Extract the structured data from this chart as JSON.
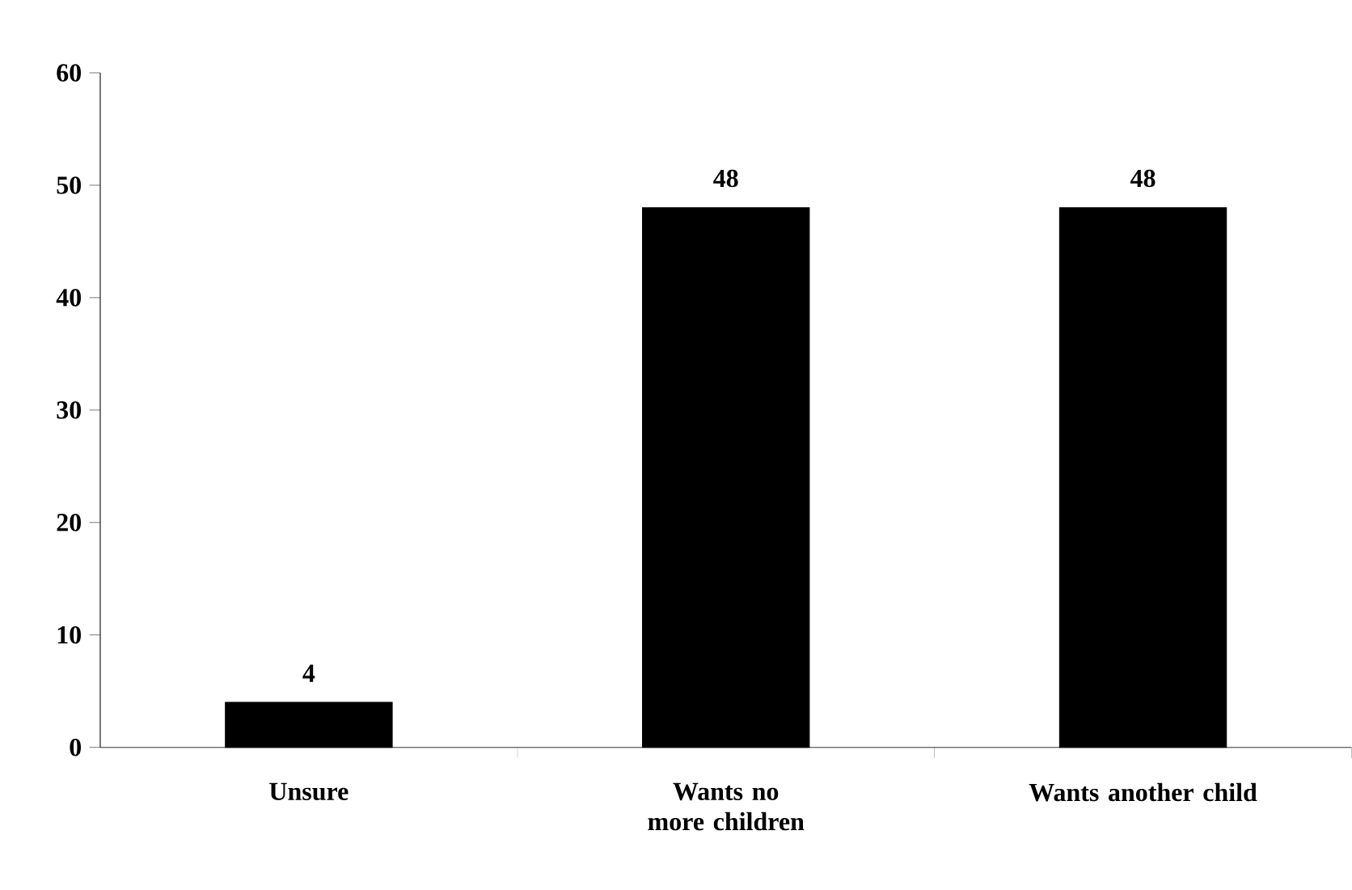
{
  "chart_data": {
    "type": "bar",
    "categories": [
      "Unsure",
      "Wants no more children",
      "Wants another child"
    ],
    "values": [
      4,
      48,
      48
    ],
    "color": "#000000",
    "ylim": [
      0,
      60
    ],
    "yticks": [
      0,
      10,
      20,
      30,
      40,
      50,
      60
    ],
    "data_labels": true
  }
}
